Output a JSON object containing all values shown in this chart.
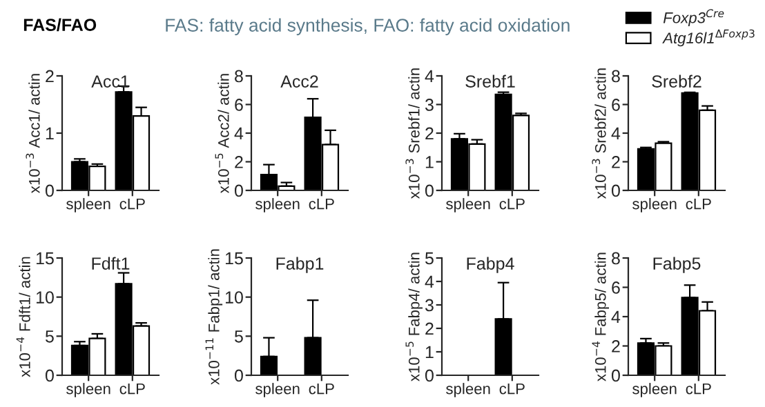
{
  "chart_data": [
    {
      "type": "bar",
      "title": "Acc1",
      "ylabel": "x10$^{−3}$ Acc1/ actin",
      "categories": [
        "spleen",
        "cLP"
      ],
      "ylim": [
        0,
        2
      ],
      "yticks": [
        0,
        1,
        2
      ],
      "annotations": [
        "FAS/FAO",
        "FAS: fatty acid synthesis, FAO: fatty acid oxidation"
      ],
      "series": [
        {
          "color": "#000000",
          "values": [
            0.5,
            1.72
          ],
          "errors": [
            [
              0.5,
              0.55
            ],
            [
              1.72,
              1.82
            ]
          ]
        },
        {
          "color": "#ffffff",
          "values": [
            0.42,
            1.3
          ],
          "errors": [
            [
              0.42,
              0.46
            ],
            [
              1.3,
              1.45
            ]
          ]
        }
      ]
    },
    {
      "type": "bar",
      "title": "Acc2",
      "ylabel": "x10$^{−5}$ Acc2/ actin",
      "categories": [
        "spleen",
        "cLP"
      ],
      "ylim": [
        0,
        8
      ],
      "yticks": [
        0,
        2,
        4,
        6,
        8
      ],
      "series": [
        {
          "color": "#000000",
          "values": [
            1.1,
            5.1
          ],
          "errors": [
            [
              1.1,
              1.8
            ],
            [
              5.1,
              6.4
            ]
          ]
        },
        {
          "color": "#ffffff",
          "values": [
            0.3,
            3.2
          ],
          "errors": [
            [
              0.3,
              0.55
            ],
            [
              3.2,
              4.2
            ]
          ]
        }
      ]
    },
    {
      "type": "bar",
      "title": "Srebf1",
      "ylabel": "x10$^{−3}$ Srebf1/ actin",
      "categories": [
        "spleen",
        "cLP"
      ],
      "ylim": [
        0,
        4
      ],
      "yticks": [
        0,
        1,
        2,
        3,
        4
      ],
      "series": [
        {
          "color": "#000000",
          "values": [
            1.8,
            3.35
          ],
          "errors": [
            [
              1.8,
              1.98
            ],
            [
              3.35,
              3.43
            ]
          ]
        },
        {
          "color": "#ffffff",
          "values": [
            1.62,
            2.62
          ],
          "errors": [
            [
              1.62,
              1.77
            ],
            [
              2.62,
              2.69
            ]
          ]
        }
      ]
    },
    {
      "type": "bar",
      "title": "Srebf2",
      "ylabel": "x10$^{−3}$ Srebf2/ actin",
      "categories": [
        "spleen",
        "cLP"
      ],
      "ylim": [
        0,
        8
      ],
      "yticks": [
        0,
        2,
        4,
        6,
        8
      ],
      "legend": "top right",
      "series": [
        {
          "name": "Foxp3$^{Cre}$",
          "color": "#000000",
          "values": [
            2.9,
            6.8
          ],
          "errors": [
            [
              2.9,
              3.0
            ],
            [
              6.8,
              6.85
            ]
          ]
        },
        {
          "name": "Atg16l1$^{ΔFoxp3}$",
          "color": "#ffffff",
          "values": [
            3.3,
            5.6
          ],
          "errors": [
            [
              3.3,
              3.4
            ],
            [
              5.6,
              5.9
            ]
          ]
        }
      ]
    },
    {
      "type": "bar",
      "title": "Fdft1",
      "ylabel": "x10$^{−4}$ Fdft1/ actin",
      "categories": [
        "spleen",
        "cLP"
      ],
      "ylim": [
        0,
        15
      ],
      "yticks": [
        0,
        5,
        10,
        15
      ],
      "series": [
        {
          "color": "#000000",
          "values": [
            3.8,
            11.7
          ],
          "errors": [
            [
              3.8,
              4.3
            ],
            [
              11.7,
              13.1
            ]
          ]
        },
        {
          "color": "#ffffff",
          "values": [
            4.7,
            6.3
          ],
          "errors": [
            [
              4.7,
              5.3
            ],
            [
              6.3,
              6.7
            ]
          ]
        }
      ]
    },
    {
      "type": "bar",
      "title": "Fabp1",
      "ylabel": "x10$^{−11}$ Fabp1/ actin",
      "categories": [
        "spleen",
        "cLP"
      ],
      "ylim": [
        0,
        15
      ],
      "yticks": [
        0,
        5,
        10,
        15
      ],
      "series": [
        {
          "color": "#000000",
          "values": [
            2.4,
            4.8
          ],
          "errors": [
            [
              2.4,
              4.8
            ],
            [
              4.8,
              9.6
            ]
          ]
        },
        {
          "color": "#ffffff",
          "values": [
            null,
            null
          ]
        }
      ]
    },
    {
      "type": "bar",
      "title": "Fabp4",
      "ylabel": "x10$^{−5}$ Fabp4/ actin",
      "categories": [
        "spleen",
        "cLP"
      ],
      "ylim": [
        0,
        5
      ],
      "yticks": [
        0,
        1,
        2,
        3,
        4,
        5
      ],
      "series": [
        {
          "color": "#000000",
          "values": [
            null,
            2.4
          ],
          "errors": [
            null,
            [
              2.4,
              3.95
            ]
          ]
        },
        {
          "color": "#ffffff",
          "values": [
            null,
            null
          ]
        }
      ]
    },
    {
      "type": "bar",
      "title": "Fabp5",
      "ylabel": "x10$^{−4}$ Fabp5/ actin",
      "categories": [
        "spleen",
        "cLP"
      ],
      "ylim": [
        0,
        8
      ],
      "yticks": [
        0,
        2,
        4,
        6,
        8
      ],
      "series": [
        {
          "color": "#000000",
          "values": [
            2.2,
            5.3
          ],
          "errors": [
            [
              2.2,
              2.5
            ],
            [
              5.3,
              6.15
            ]
          ]
        },
        {
          "color": "#ffffff",
          "values": [
            2.0,
            4.4
          ],
          "errors": [
            [
              2.0,
              2.2
            ],
            [
              4.4,
              5.0
            ]
          ]
        }
      ]
    }
  ]
}
